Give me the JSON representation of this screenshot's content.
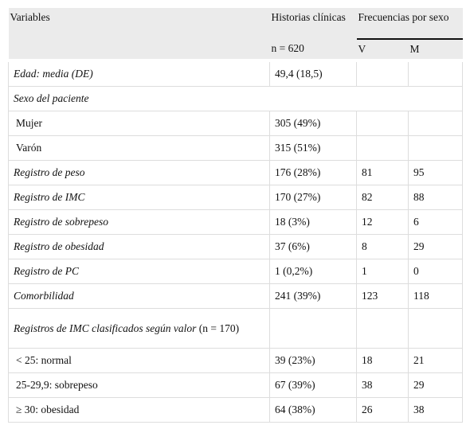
{
  "table": {
    "header": {
      "variables": "Variables",
      "historias": "Historias clínicas",
      "frecuencias": "Frecuencias por sexo",
      "n": "n = 620",
      "v": "V",
      "m": "M"
    },
    "rows": [
      {
        "label": "Edad: media (DE)",
        "total": "49,4 (18,5)"
      },
      {
        "label": "Sexo del paciente"
      },
      {
        "label": "Mujer",
        "total": "305 (49%)"
      },
      {
        "label": "Varón",
        "total": "315 (51%)"
      },
      {
        "label": "Registro de peso",
        "total": "176 (28%)",
        "v": "81",
        "m": "95"
      },
      {
        "label": "Registro de IMC",
        "total": "170 (27%)",
        "v": "82",
        "m": "88"
      },
      {
        "label": "Registro de sobrepeso",
        "total": "18 (3%)",
        "v": "12",
        "m": "6"
      },
      {
        "label": "Registro de obesidad",
        "total": "37 (6%)",
        "v": "8",
        "m": "29"
      },
      {
        "label": "Registro de PC",
        "total": "1 (0,2%)",
        "v": "1",
        "m": "0"
      },
      {
        "label": "Comorbilidad",
        "total": "241 (39%)",
        "v": "123",
        "m": "118"
      },
      {
        "label": "Registros de IMC clasificados según valor",
        "label_suffix": "(n = 170)"
      },
      {
        "label": "< 25: normal",
        "total": "39 (23%)",
        "v": "18",
        "m": "21"
      },
      {
        "label": "25-29,9: sobrepeso",
        "total": "67 (39%)",
        "v": "38",
        "m": "29"
      },
      {
        "label": "≥ 30: obesidad",
        "total": "64 (38%)",
        "v": "26",
        "m": "38"
      }
    ]
  }
}
